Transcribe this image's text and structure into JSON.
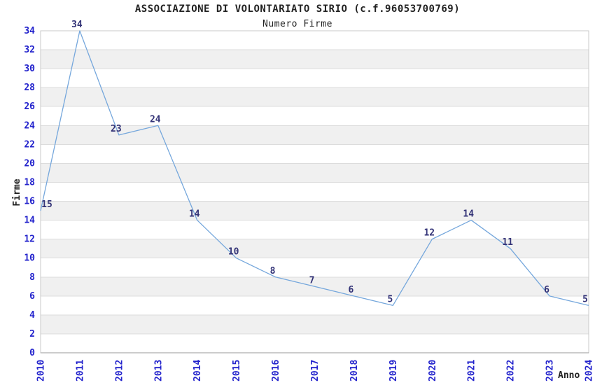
{
  "chart_data": {
    "type": "line",
    "title": "ASSOCIAZIONE DI VOLONTARIATO SIRIO (c.f.96053700769)",
    "subtitle": "Numero Firme",
    "xlabel": "Anno",
    "ylabel": "Firme",
    "categories": [
      "2010",
      "2011",
      "2012",
      "2013",
      "2014",
      "2015",
      "2016",
      "2017",
      "2018",
      "2019",
      "2020",
      "2021",
      "2022",
      "2023",
      "2024"
    ],
    "values": [
      15,
      34,
      23,
      24,
      14,
      10,
      8,
      7,
      6,
      5,
      12,
      14,
      11,
      6,
      5
    ],
    "ylim": [
      0,
      34
    ],
    "ytick_step": 2,
    "grid": "horizontal-alternating-bands",
    "legend": "none",
    "value_labels_shown": true,
    "colors": {
      "line": "#75A7DC",
      "tick_labels": "#2222CC",
      "value_labels": "#333377",
      "band": "#F0F0F0",
      "band_edge": "#DCDCDC",
      "plot_border": "#C8C8C8",
      "axis": "#999999",
      "heading_text": "#222222"
    }
  }
}
